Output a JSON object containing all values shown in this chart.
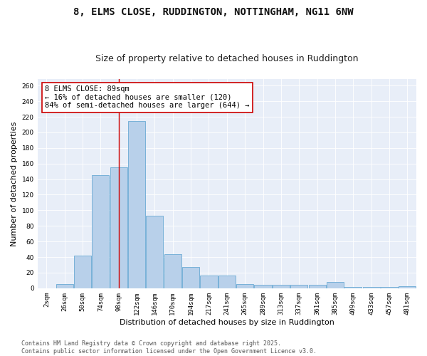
{
  "title_line1": "8, ELMS CLOSE, RUDDINGTON, NOTTINGHAM, NG11 6NW",
  "title_line2": "Size of property relative to detached houses in Ruddington",
  "xlabel": "Distribution of detached houses by size in Ruddington",
  "ylabel": "Number of detached properties",
  "categories": [
    "2sqm",
    "26sqm",
    "50sqm",
    "74sqm",
    "98sqm",
    "122sqm",
    "146sqm",
    "170sqm",
    "194sqm",
    "217sqm",
    "241sqm",
    "265sqm",
    "289sqm",
    "313sqm",
    "337sqm",
    "361sqm",
    "385sqm",
    "409sqm",
    "433sqm",
    "457sqm",
    "481sqm"
  ],
  "values": [
    0,
    5,
    42,
    145,
    155,
    215,
    93,
    44,
    27,
    16,
    16,
    5,
    4,
    4,
    4,
    4,
    8,
    2,
    2,
    2,
    3
  ],
  "bar_color": "#b8d0ea",
  "bar_edge_color": "#6aaad4",
  "vline_x": 4.0,
  "vline_color": "#cc0000",
  "annotation_text": "8 ELMS CLOSE: 89sqm\n← 16% of detached houses are smaller (120)\n84% of semi-detached houses are larger (644) →",
  "ylim": [
    0,
    268
  ],
  "yticks": [
    0,
    20,
    40,
    60,
    80,
    100,
    120,
    140,
    160,
    180,
    200,
    220,
    240,
    260
  ],
  "background_color": "#e8eef8",
  "footer_text": "Contains HM Land Registry data © Crown copyright and database right 2025.\nContains public sector information licensed under the Open Government Licence v3.0.",
  "title_fontsize": 10,
  "subtitle_fontsize": 9,
  "axis_label_fontsize": 8,
  "tick_fontsize": 6.5,
  "annotation_fontsize": 7.5,
  "footer_fontsize": 6
}
